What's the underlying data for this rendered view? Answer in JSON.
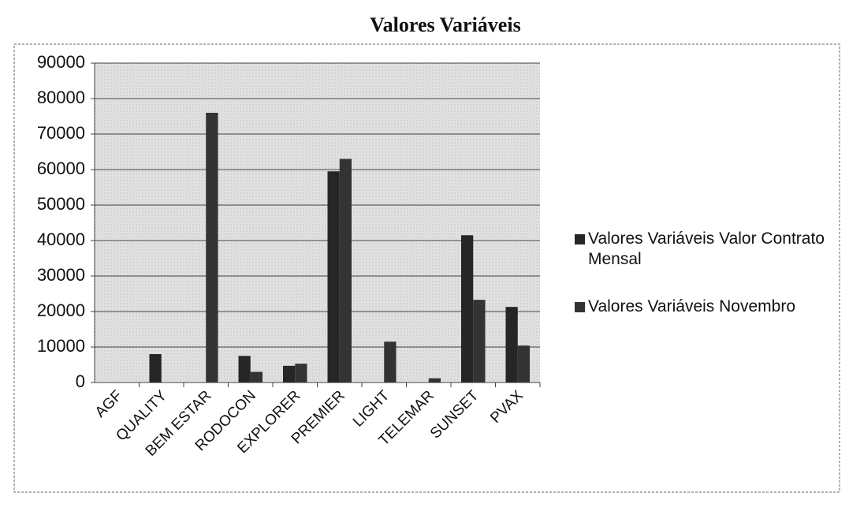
{
  "chart_data": {
    "type": "bar",
    "title": "Valores Variáveis",
    "categories": [
      "AGF",
      "QUALITY",
      "BEM ESTAR",
      "RODOCON",
      "EXPLORER",
      "PREMIER",
      "LIGHT",
      "TELEMAR",
      "SUNSET",
      "PVAX"
    ],
    "series": [
      {
        "name": "Valores Variáveis Valor Contrato Mensal",
        "color": "#262626",
        "values": [
          0,
          8000,
          0,
          7500,
          4700,
          59500,
          0,
          0,
          41500,
          21300
        ]
      },
      {
        "name": "Valores Variáveis Novembro",
        "color": "#333333",
        "values": [
          0,
          0,
          76000,
          3000,
          5300,
          63000,
          11500,
          1200,
          23300,
          10400
        ]
      }
    ],
    "ylim": [
      0,
      90000
    ],
    "yticks": [
      0,
      10000,
      20000,
      30000,
      40000,
      50000,
      60000,
      70000,
      80000,
      90000
    ],
    "grid": true,
    "legend": "right"
  }
}
